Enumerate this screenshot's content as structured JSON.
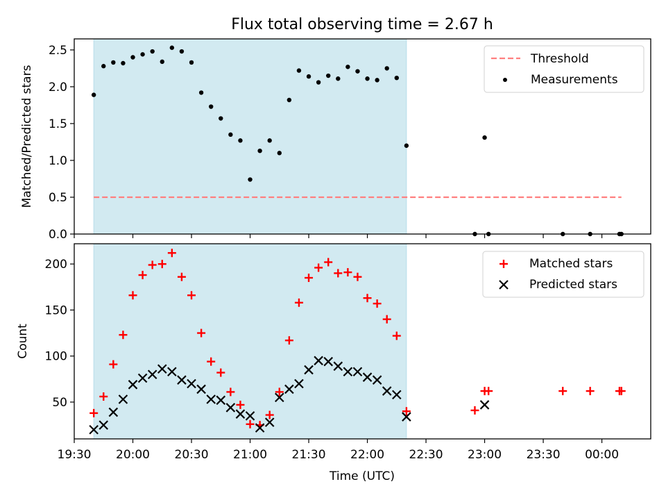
{
  "figure": {
    "title": "Flux total observing time = 2.67 h",
    "shade_color": "#add8e6",
    "x_tick_labels": [
      "19:30",
      "20:00",
      "20:30",
      "21:00",
      "21:30",
      "22:00",
      "22:30",
      "23:00",
      "23:30",
      "00:00"
    ]
  },
  "chart_data": [
    {
      "type": "scatter",
      "title": "Flux total observing time = 2.67 h",
      "xlabel": "",
      "ylabel": "Matched/Predicted stars",
      "ylim": [
        0,
        2.65
      ],
      "x_unit": "time (UTC), 19:30 to 00:10 next day",
      "y_ticks": [
        0.0,
        0.5,
        1.0,
        1.5,
        2.0,
        2.5
      ],
      "y_tick_labels": [
        "0.0",
        "0.5",
        "1.0",
        "1.5",
        "2.0",
        "2.5"
      ],
      "legend_position": "top-right",
      "shaded_interval": [
        "19:40",
        "22:20"
      ],
      "threshold": {
        "name": "Threshold",
        "value": 0.5,
        "x_range": [
          "19:40",
          "00:10"
        ],
        "color": "#ff7f7f",
        "style": "dashed"
      },
      "series": [
        {
          "name": "Measurements",
          "color": "#000000",
          "marker": "dot",
          "x": [
            "19:40",
            "19:45",
            "19:50",
            "19:55",
            "20:00",
            "20:05",
            "20:10",
            "20:15",
            "20:20",
            "20:25",
            "20:30",
            "20:35",
            "20:40",
            "20:45",
            "20:50",
            "20:55",
            "21:00",
            "21:05",
            "21:10",
            "21:15",
            "21:20",
            "21:25",
            "21:30",
            "21:35",
            "21:40",
            "21:45",
            "21:50",
            "21:55",
            "22:00",
            "22:05",
            "22:10",
            "22:15",
            "22:20",
            "22:55",
            "23:00",
            "23:02",
            "23:40",
            "23:54",
            "00:09",
            "00:10"
          ],
          "values": [
            1.89,
            2.28,
            2.33,
            2.32,
            2.4,
            2.44,
            2.48,
            2.34,
            2.53,
            2.48,
            2.33,
            1.92,
            1.73,
            1.57,
            1.35,
            1.27,
            0.74,
            1.13,
            1.27,
            1.1,
            1.82,
            2.22,
            2.14,
            2.06,
            2.15,
            2.11,
            2.27,
            2.21,
            2.11,
            2.09,
            2.25,
            2.12,
            1.2,
            0.0,
            1.31,
            0.0,
            0.0,
            0.0,
            0.0,
            0.0
          ]
        }
      ]
    },
    {
      "type": "scatter",
      "title": "",
      "xlabel": "Time (UTC)",
      "ylabel": "Count",
      "ylim": [
        10,
        222
      ],
      "y_ticks": [
        50,
        100,
        150,
        200
      ],
      "y_tick_labels": [
        "50",
        "100",
        "150",
        "200"
      ],
      "legend_position": "top-right",
      "shaded_interval": [
        "19:40",
        "22:20"
      ],
      "series": [
        {
          "name": "Matched stars",
          "color": "#ff0000",
          "marker": "plus",
          "x": [
            "19:40",
            "19:45",
            "19:50",
            "19:55",
            "20:00",
            "20:05",
            "20:10",
            "20:15",
            "20:20",
            "20:25",
            "20:30",
            "20:35",
            "20:40",
            "20:45",
            "20:50",
            "20:55",
            "21:00",
            "21:05",
            "21:10",
            "21:15",
            "21:20",
            "21:25",
            "21:30",
            "21:35",
            "21:40",
            "21:45",
            "21:50",
            "21:55",
            "22:00",
            "22:05",
            "22:10",
            "22:15",
            "22:20",
            "22:55",
            "23:00",
            "23:02",
            "23:40",
            "23:54",
            "00:09",
            "00:10"
          ],
          "values": [
            38,
            56,
            91,
            123,
            166,
            188,
            199,
            200,
            212,
            186,
            166,
            125,
            94,
            82,
            61,
            47,
            26,
            25,
            36,
            61,
            117,
            158,
            185,
            196,
            202,
            190,
            191,
            186,
            163,
            157,
            140,
            122,
            40,
            41,
            62,
            62,
            62,
            62,
            62,
            62
          ]
        },
        {
          "name": "Predicted stars",
          "color": "#000000",
          "marker": "x",
          "x": [
            "19:40",
            "19:45",
            "19:50",
            "19:55",
            "20:00",
            "20:05",
            "20:10",
            "20:15",
            "20:20",
            "20:25",
            "20:30",
            "20:35",
            "20:40",
            "20:45",
            "20:50",
            "20:55",
            "21:00",
            "21:05",
            "21:10",
            "21:15",
            "21:20",
            "21:25",
            "21:30",
            "21:35",
            "21:40",
            "21:45",
            "21:50",
            "21:55",
            "22:00",
            "22:05",
            "22:10",
            "22:15",
            "22:20",
            "23:00"
          ],
          "values": [
            20,
            25,
            39,
            53,
            69,
            76,
            80,
            86,
            83,
            74,
            70,
            64,
            53,
            52,
            44,
            37,
            35,
            22,
            28,
            55,
            64,
            70,
            85,
            95,
            94,
            89,
            83,
            83,
            77,
            74,
            62,
            58,
            34,
            47
          ]
        }
      ]
    }
  ]
}
